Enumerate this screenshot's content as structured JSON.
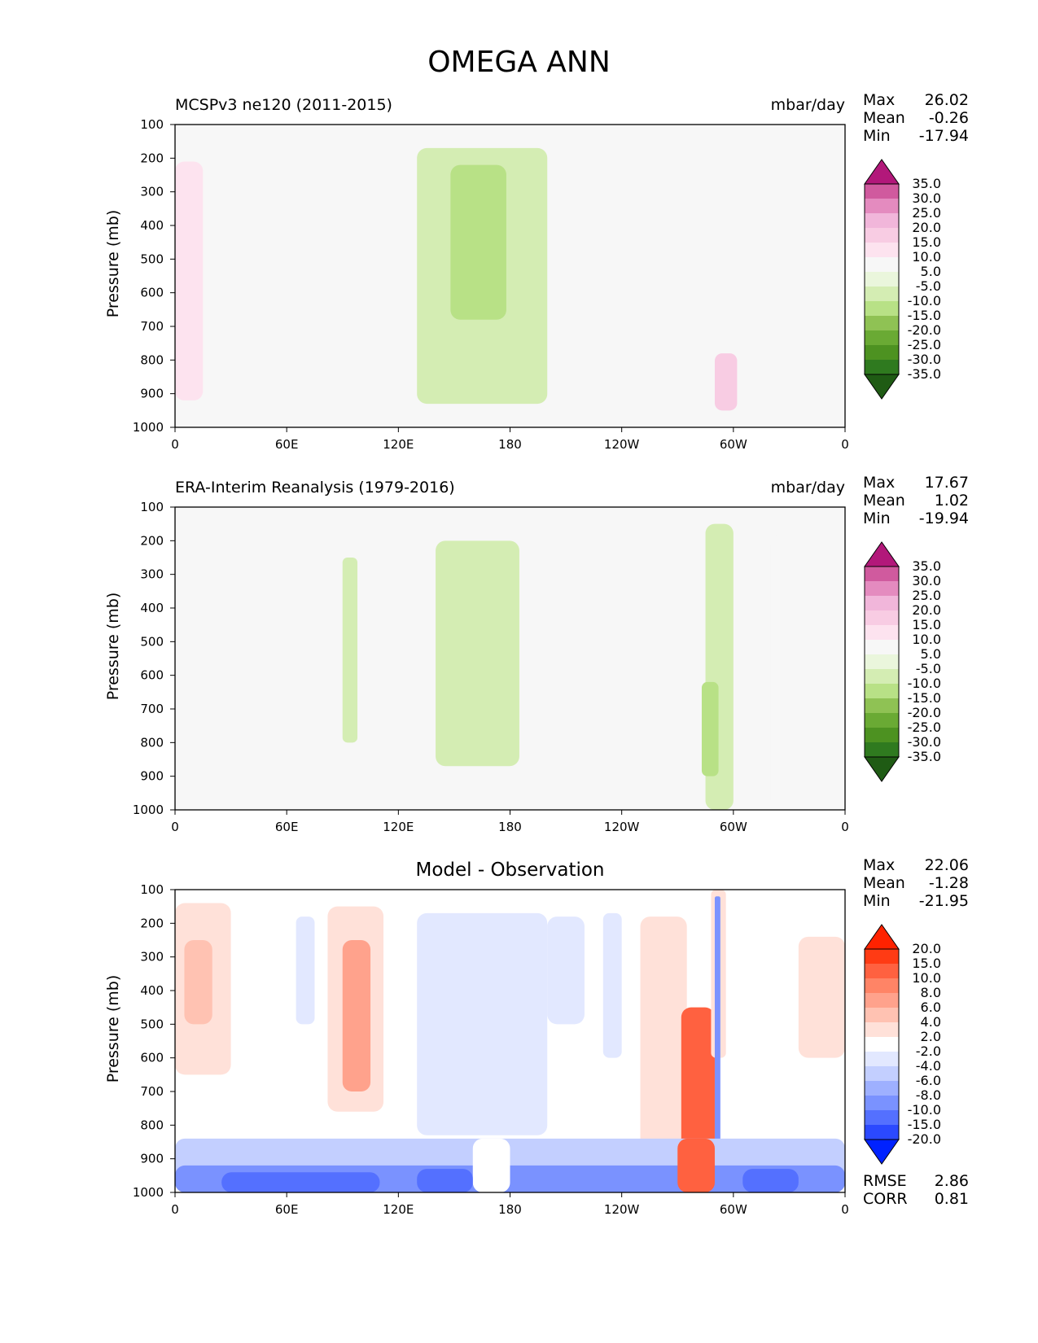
{
  "title": "OMEGA ANN",
  "colors": {
    "diverging_pink_green": [
      "#276419",
      "#4d9221",
      "#7fbc41",
      "#b8e186",
      "#e6f5d0",
      "#f7f7f7",
      "#fde0ef",
      "#f1b6da",
      "#de77ae",
      "#c51b7d",
      "#8e0152"
    ],
    "diff_blue_red": [
      "#0a2cff",
      "#3b5cff",
      "#6b85ff",
      "#9aabff",
      "#c8d2ff",
      "#e6ebff",
      "#ffffff",
      "#ffe3dc",
      "#ffbcaa",
      "#ff9b82",
      "#ff7b5a",
      "#ff4f2a",
      "#ff2200"
    ]
  },
  "chart_data": [
    {
      "type": "heatmap",
      "title": "MCSPv3 ne120 (2011-2015)",
      "units": "mbar/day",
      "ylabel": "Pressure (mb)",
      "x_ticks": [
        "0",
        "60E",
        "120E",
        "180",
        "120W",
        "60W",
        "0"
      ],
      "y_ticks": [
        "100",
        "200",
        "300",
        "400",
        "500",
        "600",
        "700",
        "800",
        "900",
        "1000"
      ],
      "ylim": [
        1000,
        100
      ],
      "stats": {
        "max": "26.02",
        "mean": "-0.26",
        "min": "-17.94"
      },
      "colorbar_levels": [
        "35.0",
        "30.0",
        "25.0",
        "20.0",
        "15.0",
        "10.0",
        "5.0",
        "-5.0",
        "-10.0",
        "-15.0",
        "-20.0",
        "-25.0",
        "-30.0",
        "-35.0"
      ],
      "regions": [
        {
          "lon": [
            0,
            15
          ],
          "p": [
            210,
            920
          ],
          "value": 12
        },
        {
          "lon": [
            35,
            70
          ],
          "p": [
            180,
            800
          ],
          "value": 7
        },
        {
          "lon": [
            130,
            200
          ],
          "p": [
            170,
            930
          ],
          "value": -7
        },
        {
          "lon": [
            148,
            178
          ],
          "p": [
            220,
            680
          ],
          "value": -12
        },
        {
          "lon": [
            232,
            275
          ],
          "p": [
            190,
            930
          ],
          "value": 7
        },
        {
          "lon": [
            290,
            302
          ],
          "p": [
            780,
            950
          ],
          "value": 18
        },
        {
          "lon": [
            330,
            360
          ],
          "p": [
            180,
            930
          ],
          "value": 7
        }
      ]
    },
    {
      "type": "heatmap",
      "title": "ERA-Interim Reanalysis (1979-2016)",
      "units": "mbar/day",
      "ylabel": "Pressure (mb)",
      "x_ticks": [
        "0",
        "60E",
        "120E",
        "180",
        "120W",
        "60W",
        "0"
      ],
      "y_ticks": [
        "100",
        "200",
        "300",
        "400",
        "500",
        "600",
        "700",
        "800",
        "900",
        "1000"
      ],
      "ylim": [
        1000,
        100
      ],
      "stats": {
        "max": "17.67",
        "mean": "1.02",
        "min": "-19.94"
      },
      "colorbar_levels": [
        "35.0",
        "30.0",
        "25.0",
        "20.0",
        "15.0",
        "10.0",
        "5.0",
        "-5.0",
        "-10.0",
        "-15.0",
        "-20.0",
        "-25.0",
        "-30.0",
        "-35.0"
      ],
      "regions": [
        {
          "lon": [
            0,
            15
          ],
          "p": [
            180,
            1000
          ],
          "value": 7
        },
        {
          "lon": [
            38,
            68
          ],
          "p": [
            200,
            1000
          ],
          "value": 7
        },
        {
          "lon": [
            90,
            98
          ],
          "p": [
            250,
            800
          ],
          "value": -7
        },
        {
          "lon": [
            140,
            185
          ],
          "p": [
            200,
            870
          ],
          "value": -7
        },
        {
          "lon": [
            232,
            275
          ],
          "p": [
            260,
            1000
          ],
          "value": 7
        },
        {
          "lon": [
            285,
            300
          ],
          "p": [
            150,
            1000
          ],
          "value": -7
        },
        {
          "lon": [
            283,
            292
          ],
          "p": [
            620,
            900
          ],
          "value": -12
        },
        {
          "lon": [
            320,
            360
          ],
          "p": [
            180,
            1000
          ],
          "value": 7
        }
      ]
    },
    {
      "type": "heatmap",
      "title": "Model - Observation",
      "units": "",
      "ylabel": "Pressure (mb)",
      "x_ticks": [
        "0",
        "60E",
        "120E",
        "180",
        "120W",
        "60W",
        "0"
      ],
      "y_ticks": [
        "100",
        "200",
        "300",
        "400",
        "500",
        "600",
        "700",
        "800",
        "900",
        "1000"
      ],
      "ylim": [
        1000,
        100
      ],
      "stats": {
        "max": "22.06",
        "mean": "-1.28",
        "min": "-21.95"
      },
      "extra_stats": {
        "rmse": "2.86",
        "corr": "0.81"
      },
      "colorbar_levels": [
        "20.0",
        "15.0",
        "10.0",
        "8.0",
        "6.0",
        "4.0",
        "2.0",
        "-2.0",
        "-4.0",
        "-6.0",
        "-8.0",
        "-10.0",
        "-15.0",
        "-20.0"
      ],
      "regions": [
        {
          "lon": [
            0,
            30
          ],
          "p": [
            140,
            650
          ],
          "value": 3
        },
        {
          "lon": [
            5,
            20
          ],
          "p": [
            250,
            500
          ],
          "value": 5
        },
        {
          "lon": [
            65,
            75
          ],
          "p": [
            180,
            500
          ],
          "value": -3
        },
        {
          "lon": [
            82,
            112
          ],
          "p": [
            150,
            760
          ],
          "value": 3
        },
        {
          "lon": [
            90,
            105
          ],
          "p": [
            250,
            700
          ],
          "value": 7
        },
        {
          "lon": [
            130,
            200
          ],
          "p": [
            170,
            830
          ],
          "value": -3
        },
        {
          "lon": [
            200,
            220
          ],
          "p": [
            180,
            500
          ],
          "value": -3
        },
        {
          "lon": [
            230,
            240
          ],
          "p": [
            170,
            600
          ],
          "value": -3
        },
        {
          "lon": [
            250,
            275
          ],
          "p": [
            180,
            900
          ],
          "value": 3
        },
        {
          "lon": [
            272,
            290
          ],
          "p": [
            450,
            920
          ],
          "value": 12
        },
        {
          "lon": [
            288,
            296
          ],
          "p": [
            100,
            600
          ],
          "value": 3
        },
        {
          "lon": [
            290,
            293
          ],
          "p": [
            120,
            1000
          ],
          "value": -9
        },
        {
          "lon": [
            335,
            360
          ],
          "p": [
            240,
            600
          ],
          "value": 3
        },
        {
          "lon": [
            0,
            360
          ],
          "p": [
            840,
            1000
          ],
          "value": -5
        },
        {
          "lon": [
            0,
            360
          ],
          "p": [
            920,
            1000
          ],
          "value": -9
        },
        {
          "lon": [
            160,
            180
          ],
          "p": [
            840,
            1000
          ],
          "value": -1
        },
        {
          "lon": [
            270,
            290
          ],
          "p": [
            840,
            1000
          ],
          "value": 12
        },
        {
          "lon": [
            25,
            110
          ],
          "p": [
            940,
            1000
          ],
          "value": -13
        },
        {
          "lon": [
            130,
            160
          ],
          "p": [
            930,
            1000
          ],
          "value": -13
        },
        {
          "lon": [
            305,
            335
          ],
          "p": [
            930,
            1000
          ],
          "value": -13
        }
      ]
    }
  ]
}
